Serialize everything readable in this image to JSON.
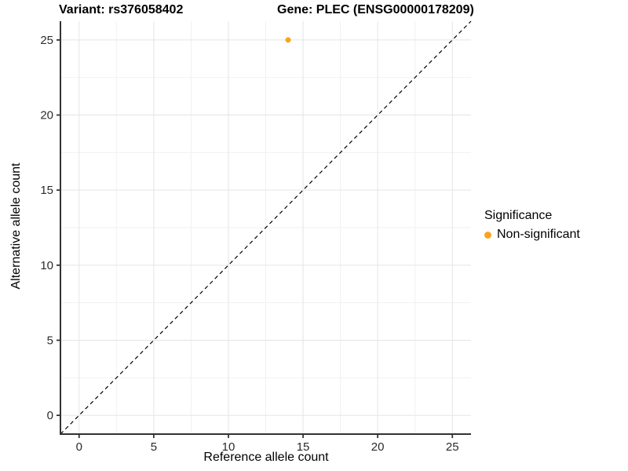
{
  "page": {
    "background": "#ffffff"
  },
  "header": {
    "title_variant": "Variant: rs376058402",
    "title_gene": "Gene: PLEC (ENSG00000178209)"
  },
  "chart_data": {
    "type": "scatter",
    "title": "Variant: rs376058402 | Gene: PLEC (ENSG00000178209)",
    "xlabel": "Reference allele count",
    "ylabel": "Alternative allele count",
    "xlim": [
      -1.25,
      26.25
    ],
    "ylim": [
      -1.25,
      26.25
    ],
    "xticks": [
      0,
      5,
      10,
      15,
      20,
      25
    ],
    "yticks": [
      0,
      5,
      10,
      15,
      20,
      25
    ],
    "minor_step": 2.5,
    "grid": "major+minor",
    "points": [
      {
        "x": 14,
        "y": 25,
        "series": "Non-significant"
      }
    ],
    "reference_line": {
      "type": "identity y=x",
      "style": "dashed",
      "dash": "5 4",
      "color": "#000000"
    },
    "legend": {
      "title": "Significance",
      "position": "right",
      "items": [
        {
          "label": "Non-significant",
          "color": "#FAA41E"
        }
      ]
    },
    "colors": {
      "point": "#FAA41E",
      "grid_major": "#e4e4e4",
      "grid_minor": "#f1f1f1",
      "axis_line": "#333333",
      "tick_mark": "#333333",
      "tick_label": "#2b2b2b",
      "title": "#000000",
      "background": "#ffffff"
    }
  }
}
